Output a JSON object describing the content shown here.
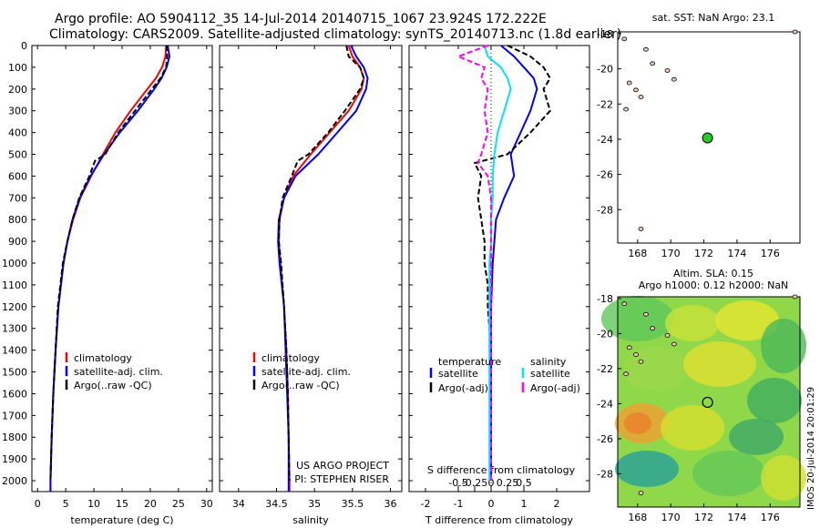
{
  "header": {
    "line1": "Argo profile: AO 5904112_35 14-Jul-2014 20140715_1067 23.924S 172.222E",
    "line2": "Climatology: CARS2009. Satellite-adjusted climatology: synTS_20140713.nc (1.8d earlier)"
  },
  "colors": {
    "climatology": "#ff0000",
    "satellite": "#0000ff",
    "argo": "#000000",
    "sat_s": "#00e5ff",
    "argo_s": "#ff00ff",
    "float": "#22cc22"
  },
  "depth_axis": {
    "ticks": [
      0,
      100,
      200,
      300,
      400,
      500,
      600,
      700,
      800,
      900,
      1000,
      1100,
      1200,
      1300,
      1400,
      1500,
      1600,
      1700,
      1800,
      1900,
      2000
    ],
    "tick_labels": [
      "0",
      "100",
      "200",
      "300",
      "400",
      "500",
      "600",
      "700",
      "800",
      "900",
      "1000",
      "1100",
      "1200",
      "1300",
      "1400",
      "1500",
      "1600",
      "1700",
      "1800",
      "1900",
      "2000"
    ]
  },
  "chart_data": [
    {
      "type": "line",
      "xlabel": "temperature (deg C)",
      "xlim": [
        -1,
        31
      ],
      "xticks": [
        0,
        5,
        10,
        15,
        20,
        25,
        30
      ],
      "xtick_labels": [
        "0",
        "5",
        "10",
        "15",
        "20",
        "25",
        "30"
      ],
      "legend": [
        "climatology",
        "satellite-adj. clim.",
        "Argo(..raw -QC)"
      ],
      "series": [
        {
          "name": "climatology",
          "color": "#ff0000",
          "depth": [
            0,
            50,
            100,
            150,
            200,
            300,
            400,
            500,
            600,
            700,
            800,
            900,
            1000,
            1200,
            1400,
            1600,
            1800,
            2000,
            2050
          ],
          "x": [
            22.8,
            22.7,
            22.1,
            21,
            19.5,
            16.5,
            13.8,
            11.6,
            9.5,
            7.6,
            6.3,
            5.3,
            4.6,
            3.7,
            3.2,
            2.8,
            2.5,
            2.3,
            2.3
          ]
        },
        {
          "name": "satellite-adj. clim.",
          "color": "#0000ff",
          "depth": [
            0,
            50,
            100,
            150,
            200,
            300,
            400,
            500,
            600,
            700,
            800,
            900,
            1000,
            1200,
            1400,
            1600,
            1800,
            2000,
            2050
          ],
          "x": [
            23.1,
            23.4,
            22.9,
            22,
            20.7,
            17.8,
            14.6,
            11.8,
            9.4,
            7.5,
            6.2,
            5.3,
            4.6,
            3.7,
            3.2,
            2.8,
            2.5,
            2.3,
            2.3
          ]
        },
        {
          "name": "Argo(..raw -QC)",
          "color": "#000000",
          "dash": true,
          "depth": [
            0,
            50,
            100,
            150,
            200,
            300,
            400,
            500,
            530,
            600,
            700,
            800,
            900,
            1000,
            1200,
            1400,
            1600,
            1800,
            2000
          ],
          "x": [
            22.9,
            23,
            22.8,
            21.8,
            20.3,
            17.3,
            14.3,
            12,
            10.2,
            9.2,
            7.4,
            6.2,
            5.3,
            4.5,
            3.6,
            3.2,
            2.8,
            2.5,
            2.3
          ]
        }
      ]
    },
    {
      "type": "line",
      "xlabel": "salinity",
      "xlim": [
        33.75,
        36.15
      ],
      "xticks": [
        34,
        34.5,
        35,
        35.5,
        36
      ],
      "xtick_labels": [
        "34",
        "34.5",
        "35",
        "35.5",
        "36"
      ],
      "legend": [
        "climatology",
        "satellite-adj. clim.",
        "Argo(..raw -QC)"
      ],
      "annotation": [
        "US ARGO PROJECT",
        "PI: STEPHEN RISER"
      ],
      "series": [
        {
          "name": "climatology",
          "color": "#ff0000",
          "depth": [
            0,
            50,
            100,
            150,
            200,
            300,
            400,
            500,
            600,
            700,
            800,
            900,
            1000,
            1200,
            1400,
            1600,
            1800,
            2000,
            2050
          ],
          "x": [
            35.45,
            35.5,
            35.6,
            35.65,
            35.62,
            35.45,
            35.2,
            34.95,
            34.72,
            34.6,
            34.54,
            34.53,
            34.55,
            34.6,
            34.63,
            34.65,
            34.66,
            34.67,
            34.67
          ]
        },
        {
          "name": "satellite-adj. clim.",
          "color": "#0000ff",
          "depth": [
            0,
            50,
            100,
            150,
            200,
            300,
            400,
            500,
            600,
            700,
            800,
            900,
            1000,
            1200,
            1400,
            1600,
            1800,
            2000,
            2050
          ],
          "x": [
            35.48,
            35.55,
            35.65,
            35.7,
            35.68,
            35.55,
            35.3,
            35.05,
            34.75,
            34.6,
            34.53,
            34.52,
            34.54,
            34.6,
            34.62,
            34.64,
            34.66,
            34.66,
            34.66
          ]
        },
        {
          "name": "Argo(..raw -QC)",
          "color": "#000000",
          "dash": true,
          "depth": [
            0,
            50,
            100,
            150,
            200,
            300,
            400,
            500,
            530,
            600,
            700,
            800,
            900,
            1000,
            1200,
            1400,
            1600,
            1800,
            2000
          ],
          "x": [
            35.42,
            35.45,
            35.6,
            35.65,
            35.6,
            35.4,
            35.18,
            34.92,
            34.78,
            34.7,
            34.58,
            34.54,
            34.53,
            34.56,
            34.6,
            34.63,
            34.65,
            34.66,
            34.67
          ]
        }
      ]
    },
    {
      "type": "line",
      "xlabel": "T difference from climatology",
      "xlabel_top": "S difference from climatology",
      "xlim": [
        -2.5,
        3
      ],
      "xticks": [
        -2,
        -1,
        0,
        1,
        2
      ],
      "xtick_labels": [
        "-2",
        "-1",
        "0",
        "1",
        "2"
      ],
      "sticks": [
        -1,
        -0.5,
        0,
        0.5,
        1
      ],
      "stick_labels": [
        "-0.5",
        "-0.25",
        "0",
        "0.25",
        "0.5"
      ],
      "legend_titles": [
        "temperature",
        "salinity"
      ],
      "legend": [
        "satellite",
        "Argo(-adj)",
        "satellite",
        "Argo(-adj)"
      ],
      "series": [
        {
          "name": "satellite",
          "color": "#0000ff",
          "depth": [
            0,
            50,
            100,
            150,
            200,
            300,
            400,
            500,
            600,
            700,
            800,
            900,
            1000,
            1200,
            1400,
            1600,
            1800,
            2000
          ],
          "x": [
            0.3,
            0.7,
            1,
            1.3,
            1.4,
            1.2,
            0.9,
            0.6,
            0.7,
            0.4,
            0.15,
            0.1,
            0.05,
            0,
            0,
            0,
            0,
            0
          ]
        },
        {
          "name": "Argo(-adj)",
          "color": "#000000",
          "dash": true,
          "depth": [
            0,
            50,
            100,
            150,
            200,
            300,
            400,
            500,
            540,
            600,
            700,
            800,
            900,
            1000,
            1100,
            1200,
            1400,
            1600,
            1800,
            2000
          ],
          "x": [
            0.5,
            1.2,
            1.6,
            1.8,
            1.6,
            1.8,
            1.2,
            0.5,
            -0.5,
            -0.3,
            -0.4,
            -0.3,
            -0.2,
            -0.2,
            -0.1,
            -0.1,
            0,
            0,
            0,
            0
          ]
        },
        {
          "name": "satellite",
          "color": "#00e5ff",
          "depth": [
            0,
            50,
            100,
            150,
            200,
            300,
            400,
            500,
            600,
            700,
            800,
            900,
            1000,
            1200,
            1400,
            1600,
            1800,
            2000
          ],
          "x": [
            -0.2,
            -0.1,
            0.3,
            0.5,
            0.6,
            0.4,
            0.2,
            0.1,
            0.05,
            0.05,
            0,
            0,
            -0.05,
            -0.05,
            -0.05,
            -0.05,
            -0.05,
            -0.05
          ]
        },
        {
          "name": "Argo(-adj)",
          "color": "#ff00ff",
          "dash": true,
          "depth": [
            0,
            50,
            100,
            150,
            200,
            300,
            400,
            500,
            540,
            600,
            700,
            800,
            900,
            1000,
            1100,
            1200,
            1400,
            1600,
            1800,
            2000
          ],
          "x": [
            -0.1,
            -1,
            -0.2,
            -0.3,
            -0.1,
            -0.2,
            -0.1,
            -0.3,
            -0.4,
            -0.1,
            0,
            0,
            0,
            0,
            0,
            0,
            0,
            0,
            0,
            0
          ]
        }
      ]
    }
  ],
  "maps": [
    {
      "title_lines": [
        "sat. SST: NaN Argo: 23.1"
      ],
      "xlim": [
        166.8,
        177.8
      ],
      "ylim": [
        -29.9,
        -17.9
      ],
      "xticks": [
        168,
        170,
        172,
        174,
        176
      ],
      "yticks": [
        -28,
        -26,
        -24,
        -22,
        -20,
        -18
      ],
      "float": {
        "lon": 172.222,
        "lat": -23.924
      }
    },
    {
      "title_lines": [
        "Altim. SLA: 0.15",
        "Argo h1000: 0.12 h2000: NaN"
      ],
      "xlim": [
        166.8,
        177.8
      ],
      "ylim": [
        -29.9,
        -17.9
      ],
      "xticks": [
        168,
        170,
        172,
        174,
        176
      ],
      "yticks": [
        -28,
        -26,
        -24,
        -22,
        -20,
        -18
      ],
      "float": {
        "lon": 172.222,
        "lat": -23.924
      }
    }
  ],
  "side_label": "IMOS 20-Jul-2014 20:01:29"
}
